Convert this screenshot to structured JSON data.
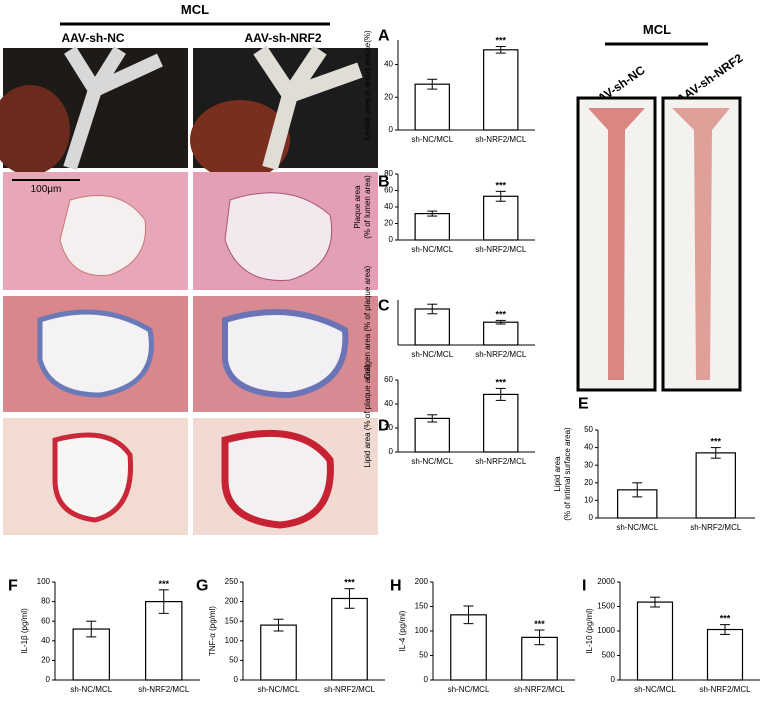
{
  "panel_labels": [
    "A",
    "B",
    "C",
    "D",
    "E",
    "F",
    "G",
    "H",
    "I"
  ],
  "group_title": "MCL",
  "images": {
    "left_label": "AAV-sh-NC",
    "right_label": "AAV-sh-NRF2",
    "scale_bar": "100μm"
  },
  "chart_data": [
    {
      "type": "bar",
      "ylabel": [
        "Lesion area in arcus aortae(%)"
      ],
      "categories": [
        "sh-NC/MCL",
        "sh-NRF2/MCL"
      ],
      "values": [
        28,
        49
      ],
      "errors": [
        3,
        2
      ],
      "significance": "***",
      "ylim": [
        0,
        55
      ],
      "yticks": [
        0,
        20,
        40
      ],
      "color": "#ffffff"
    },
    {
      "type": "bar",
      "ylabel": [
        "Plaque area",
        "(% of lumen area)"
      ],
      "categories": [
        "sh-NC/MCL",
        "sh-NRF2/MCL"
      ],
      "values": [
        32,
        53
      ],
      "errors": [
        3,
        6
      ],
      "significance": "***",
      "ylim": [
        0,
        80
      ],
      "yticks": [
        0,
        20,
        40,
        60,
        80
      ],
      "color": "#ffffff"
    },
    {
      "type": "bar",
      "ylabel": [
        "Collgen area (% of plaque area)"
      ],
      "categories": [
        "sh-NC/MCL",
        "sh-NRF2/MCL"
      ],
      "values": [
        60,
        38
      ],
      "errors": [
        8,
        3
      ],
      "significance": "***",
      "ylim": [
        0,
        75
      ],
      "yticks": [],
      "color": "#ffffff"
    },
    {
      "type": "bar",
      "ylabel": [
        "Lipid area (% of plaque area)"
      ],
      "categories": [
        "sh-NC/MCL",
        "sh-NRF2/MCL"
      ],
      "values": [
        28,
        48
      ],
      "errors": [
        3,
        5
      ],
      "significance": "***",
      "ylim": [
        0,
        60
      ],
      "yticks": [
        0,
        20,
        40,
        60
      ],
      "color": "#ffffff"
    },
    {
      "type": "bar",
      "ylabel": [
        "Lipid area",
        "(% of intimal surface area)"
      ],
      "categories": [
        "sh-NC/MCL",
        "sh-NRF2/MCL"
      ],
      "values": [
        16,
        37
      ],
      "errors": [
        4,
        3
      ],
      "significance": "***",
      "ylim": [
        0,
        50
      ],
      "yticks": [
        0,
        10,
        20,
        30,
        40,
        50
      ],
      "color": "#ffffff"
    },
    {
      "type": "bar",
      "ylabel": [
        "IL-1β (pg/ml)"
      ],
      "categories": [
        "sh-NC/MCL",
        "sh-NRF2/MCL"
      ],
      "values": [
        52,
        80
      ],
      "errors": [
        8,
        12
      ],
      "significance": "***",
      "ylim": [
        0,
        100
      ],
      "yticks": [
        0,
        20,
        40,
        60,
        80,
        100
      ],
      "color": "#ffffff"
    },
    {
      "type": "bar",
      "ylabel": [
        "TNF-α (pg/ml)"
      ],
      "categories": [
        "sh-NC/MCL",
        "sh-NRF2/MCL"
      ],
      "values": [
        140,
        208
      ],
      "errors": [
        15,
        25
      ],
      "significance": "***",
      "ylim": [
        0,
        250
      ],
      "yticks": [
        0,
        50,
        100,
        150,
        200,
        250
      ],
      "color": "#ffffff"
    },
    {
      "type": "bar",
      "ylabel": [
        "IL-4 (pg/ml)"
      ],
      "categories": [
        "sh-NC/MCL",
        "sh-NRF2/MCL"
      ],
      "values": [
        133,
        87
      ],
      "errors": [
        18,
        15
      ],
      "significance": "***",
      "ylim": [
        0,
        200
      ],
      "yticks": [
        0,
        50,
        100,
        150,
        200
      ],
      "color": "#ffffff"
    },
    {
      "type": "bar",
      "ylabel": [
        "IL-10 (pg/ml)"
      ],
      "categories": [
        "sh-NC/MCL",
        "sh-NRF2/MCL"
      ],
      "values": [
        1590,
        1030
      ],
      "errors": [
        100,
        100
      ],
      "significance": "***",
      "ylim": [
        0,
        2000
      ],
      "yticks": [
        0,
        500,
        1000,
        1500,
        2000
      ],
      "color": "#ffffff"
    }
  ]
}
